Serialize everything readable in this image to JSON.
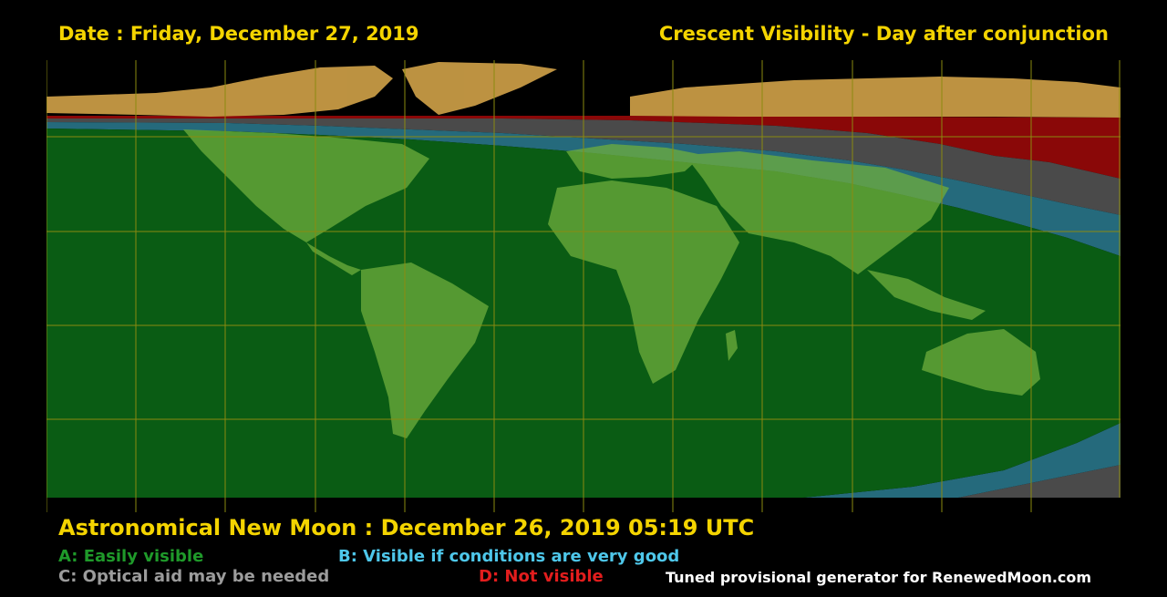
{
  "header": {
    "date": "Date : Friday, December 27, 2019",
    "title": "Crescent Visibility - Day after conjunction"
  },
  "footer": {
    "new_moon": "Astronomical New Moon : December 26, 2019 05:19 UTC",
    "credit": "Tuned provisional generator for RenewedMoon.com"
  },
  "legend": [
    {
      "key": "A",
      "text": "A: Easily visible",
      "color": "#1f9a2a"
    },
    {
      "key": "B",
      "text": "B: Visible if conditions are very good",
      "color": "#4ec7ea"
    },
    {
      "key": "C",
      "text": "C: Optical aid may be needed",
      "color": "#9c9c9c"
    },
    {
      "key": "D",
      "text": "D: Not visible",
      "color": "#e21d1d"
    }
  ],
  "colors": {
    "zone_a": "#0a5c14",
    "zone_b": "#256a7c",
    "zone_c": "#4a4a4a",
    "zone_d": "#8a0808",
    "land_overlay": "#6fae3c",
    "unlit_land": "#c79a45",
    "grid": "#8a8a10",
    "title_text": "#f4d400"
  }
}
